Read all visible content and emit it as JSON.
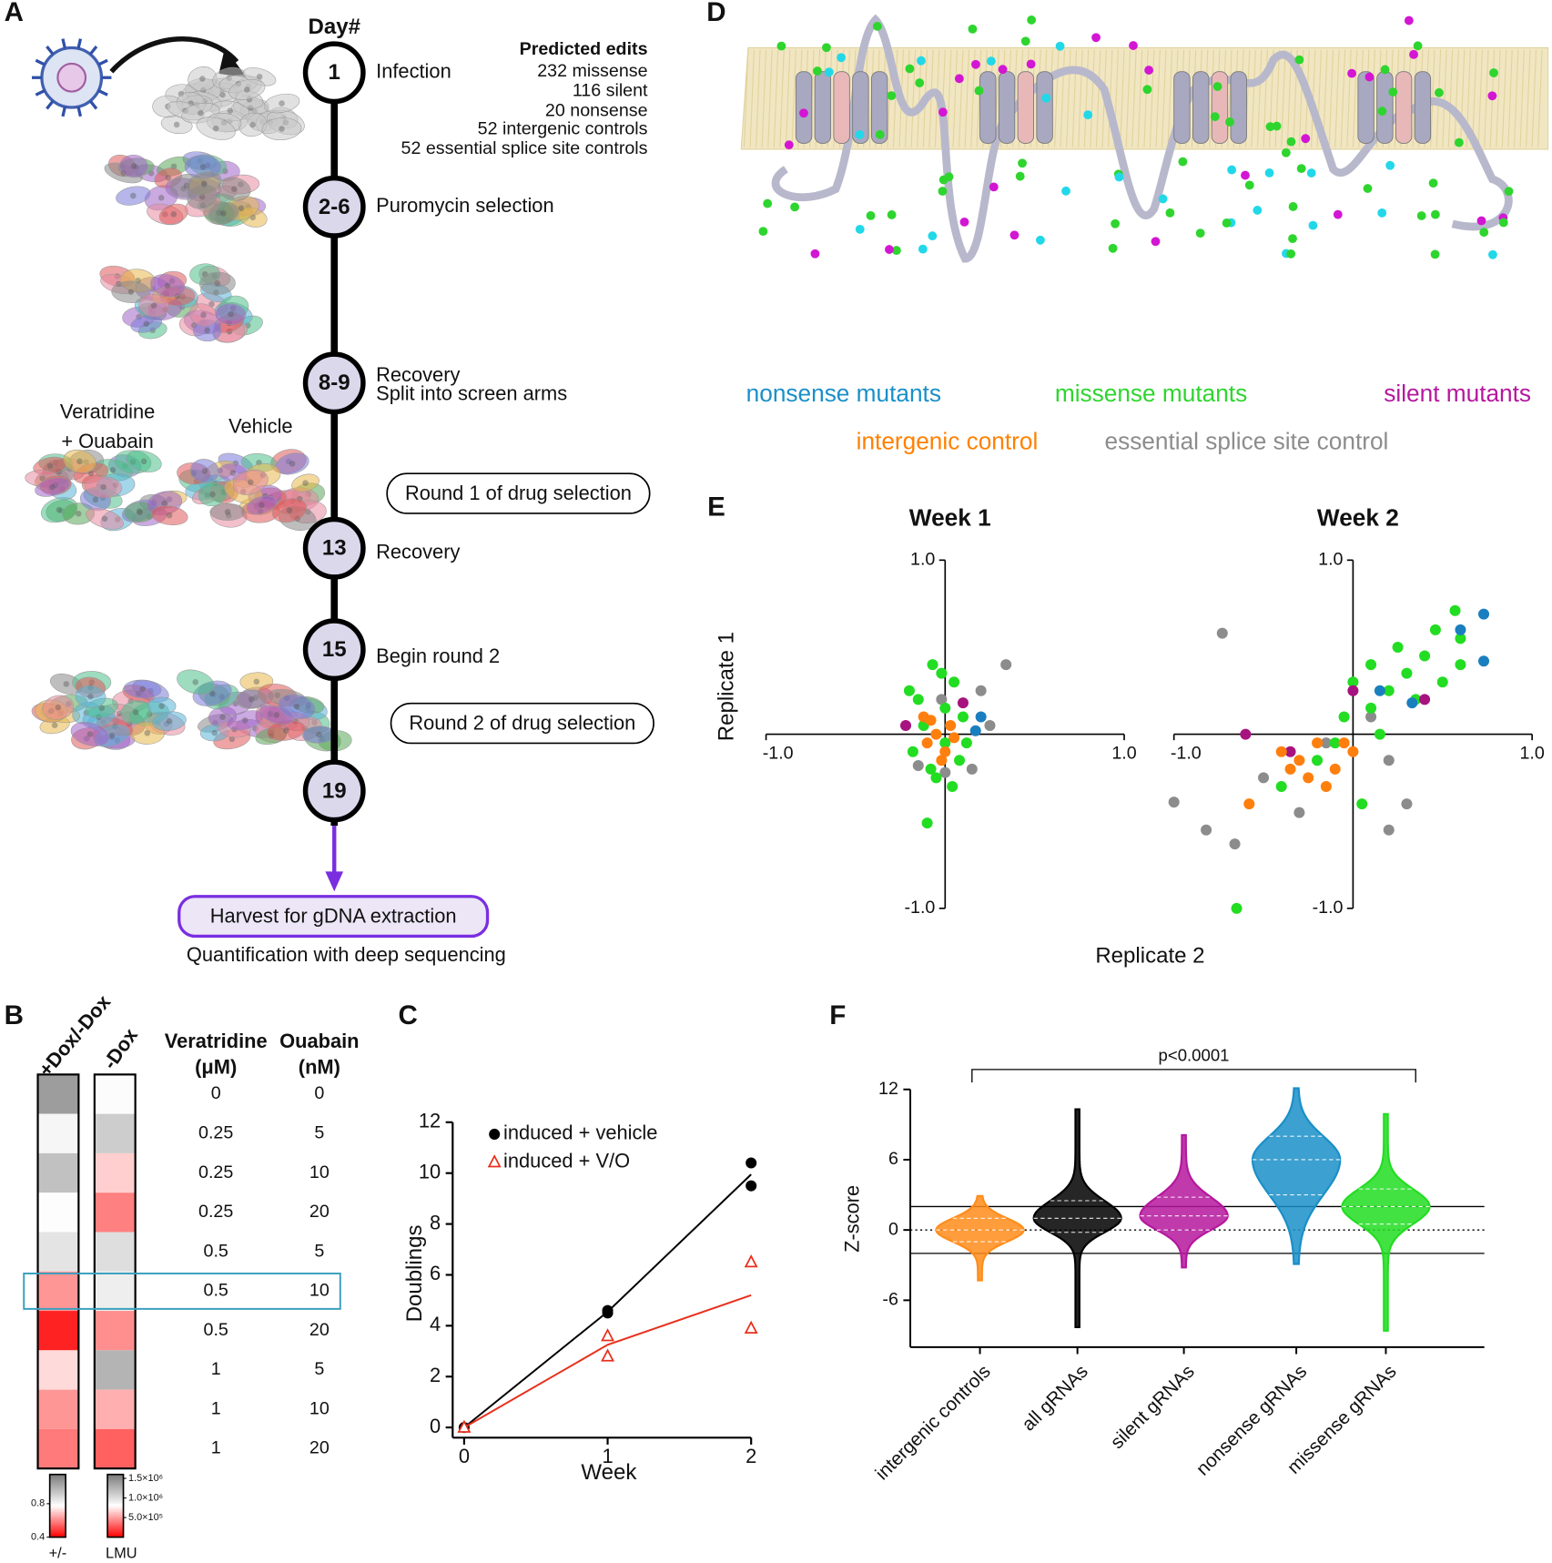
{
  "panel_labels": [
    "A",
    "B",
    "C",
    "D",
    "E",
    "F"
  ],
  "timeline": {
    "header": "Day#",
    "steps": [
      {
        "day": "1",
        "label": [
          "Infection"
        ]
      },
      {
        "day": "2-6",
        "label": [
          "Puromycin selection"
        ]
      },
      {
        "day": "8-9",
        "label": [
          "Recovery",
          "Split into screen arms"
        ]
      },
      {
        "day": "13",
        "label": [
          "Recovery"
        ]
      },
      {
        "day": "15",
        "label": [
          "Begin round 2"
        ]
      },
      {
        "day": "19"
      }
    ],
    "boxes": [
      "Round 1 of drug selection",
      "Round 2 of drug selection"
    ],
    "edits_title": "Predicted edits",
    "edits": [
      "232 missense",
      "116 silent",
      "20 nonsense",
      "52 intergenic controls",
      "52 essential splice site controls"
    ],
    "arm_labels": [
      "Veratridine",
      "+ Ouabain",
      "Vehicle"
    ],
    "harvest": "Harvest for gDNA extraction",
    "quantification": "Quantification with deep sequencing"
  },
  "structure_legend": [
    {
      "label": "nonsense mutants",
      "color": "#1a8fc8"
    },
    {
      "label": "missense mutants",
      "color": "#2ed52e"
    },
    {
      "label": "silent mutants",
      "color": "#b5179e"
    },
    {
      "label": "intergenic control",
      "color": "#ff8000"
    },
    {
      "label": "essential splice site control",
      "color": "#8c8c8c"
    }
  ],
  "chart_data": [
    {
      "type": "heatmap",
      "table": {
        "headers": [
          [
            "Veratridine",
            "(μM)"
          ],
          [
            "Ouabain",
            "(nM)"
          ]
        ],
        "rows": [
          [
            0,
            0
          ],
          [
            0.25,
            5
          ],
          [
            0.25,
            10
          ],
          [
            0.25,
            20
          ],
          [
            0.5,
            5
          ],
          [
            0.5,
            10
          ],
          [
            0.5,
            20
          ],
          [
            1,
            5
          ],
          [
            1,
            10
          ],
          [
            1,
            20
          ]
        ]
      },
      "highlight_row": 5,
      "series": [
        {
          "name": "+Dox/-Dox",
          "scale": 0,
          "values": [
            1.05,
            0.8,
            0.95,
            0.78,
            0.85,
            0.62,
            0.45,
            0.72,
            0.62,
            0.58
          ]
        },
        {
          "name": "-Dox",
          "scale": 1,
          "values": [
            820000,
            1100000,
            650000,
            400000,
            1000000,
            900000,
            450000,
            1250000,
            550000,
            300000
          ]
        }
      ],
      "scales": [
        {
          "label": "+/-",
          "clim": [
            0.4,
            1.15
          ],
          "colors": [
            "#ff0000",
            "#ffffff",
            "#7a7a7a"
          ],
          "ticks": [
            0.4,
            0.8
          ]
        },
        {
          "label": "LMU",
          "clim": [
            0,
            1600000
          ],
          "colors": [
            "#ff0000",
            "#ffffff",
            "#7a7a7a"
          ],
          "ticks": [
            {
              "value": 500000,
              "label": "5.0×10⁵"
            },
            {
              "value": 1000000,
              "label": "1.0×10⁶"
            },
            {
              "value": 1500000,
              "label": "1.5×10⁶"
            }
          ]
        }
      ]
    },
    {
      "type": "line",
      "xlabel": "Week",
      "ylabel": "Doublings",
      "xlim": [
        -0.08,
        2
      ],
      "ylim": [
        -0.4,
        12
      ],
      "xticks": [
        0,
        1,
        2
      ],
      "yticks": [
        0,
        2,
        4,
        6,
        8,
        10,
        12
      ],
      "series": [
        {
          "name": "induced + vehicle",
          "color": "#000000",
          "marker": "circle",
          "x": [
            0,
            1,
            1,
            2,
            2
          ],
          "values": [
            0,
            4.5,
            4.6,
            10.4,
            9.5
          ],
          "fit_x": [
            0,
            1,
            2
          ],
          "fit_values": [
            0,
            4.55,
            9.95
          ]
        },
        {
          "name": "induced + V/O",
          "color": "#e8301c",
          "marker": "triangle",
          "x": [
            0,
            1,
            1,
            2,
            2
          ],
          "values": [
            0,
            3.6,
            2.8,
            6.5,
            3.9
          ],
          "fit_x": [
            0,
            1,
            2
          ],
          "fit_values": [
            0,
            3.25,
            5.2
          ]
        }
      ]
    },
    {
      "type": "scatter",
      "title": "Week 1",
      "ylabel": "Replicate 1",
      "xlim": [
        -1,
        1
      ],
      "ylim": [
        -1,
        1
      ],
      "xticks": [
        {
          "value": -1,
          "label": "-1.0"
        },
        {
          "value": 1,
          "label": "1.0"
        }
      ],
      "yticks": [
        {
          "value": -1,
          "label": "-1.0"
        },
        {
          "value": 1,
          "label": "1.0"
        }
      ],
      "series": [
        {
          "color": "#8c8c8c",
          "x": [
            0.34,
            0.2,
            0.15,
            -0.15,
            0.0,
            0.25,
            -0.02
          ],
          "values": [
            0.4,
            0.25,
            -0.2,
            -0.18,
            -0.22,
            0.05,
            0.2
          ]
        },
        {
          "color": "#22dd22",
          "x": [
            -0.07,
            -0.1,
            -0.15,
            0.05,
            -0.12,
            0.08,
            -0.05,
            0.0,
            -0.18,
            0.1,
            -0.02,
            0.04,
            -0.2,
            0.12,
            -0.08,
            0.0
          ],
          "values": [
            0.4,
            -0.51,
            0.2,
            0.3,
            0.05,
            -0.15,
            -0.25,
            0.15,
            -0.1,
            0.1,
            0.35,
            -0.3,
            0.25,
            -0.05,
            -0.2,
            -0.05
          ]
        },
        {
          "color": "#a6137f",
          "x": [
            -0.22,
            0.1
          ],
          "values": [
            0.05,
            0.18
          ]
        },
        {
          "color": "#1a7fbf",
          "x": [
            0.2,
            0.17
          ],
          "values": [
            0.1,
            0.02
          ]
        },
        {
          "color": "#ff7f0e",
          "x": [
            -0.05,
            -0.1,
            0.0,
            -0.08,
            0.05,
            -0.02,
            -0.12,
            0.03
          ],
          "values": [
            0.0,
            -0.05,
            -0.1,
            0.08,
            -0.02,
            -0.15,
            0.1,
            0.05
          ]
        }
      ]
    },
    {
      "type": "scatter",
      "title": "Week 2",
      "xlabel": "Replicate 2",
      "xlim": [
        -1,
        1
      ],
      "ylim": [
        -1,
        1
      ],
      "xticks": [
        {
          "value": -1,
          "label": "-1.0"
        },
        {
          "value": 1,
          "label": "1.0"
        }
      ],
      "yticks": [
        {
          "value": -1,
          "label": "-1.0"
        },
        {
          "value": 1,
          "label": "1.0"
        }
      ],
      "series": [
        {
          "color": "#8c8c8c",
          "x": [
            -0.73,
            -1.0,
            0.2,
            -0.66,
            -0.82,
            0.3,
            -0.5,
            -0.3,
            -0.15,
            0.2,
            0.1
          ],
          "values": [
            0.58,
            -0.39,
            -0.55,
            -0.63,
            -0.55,
            -0.4,
            -0.25,
            -0.45,
            -0.05,
            -0.15,
            0.1
          ]
        },
        {
          "color": "#22dd22",
          "x": [
            0.57,
            0.46,
            0.4,
            0.3,
            0.5,
            0.2,
            0.1,
            0.0,
            -0.05,
            0.15,
            0.35,
            0.6,
            0.25,
            -0.65,
            -0.2,
            0.05,
            -0.4,
            0.1,
            -0.1,
            0.6
          ],
          "values": [
            0.71,
            0.6,
            0.45,
            0.35,
            0.3,
            0.25,
            0.15,
            0.3,
            0.1,
            0.0,
            0.2,
            0.4,
            0.5,
            -1.0,
            -0.15,
            -0.4,
            -0.3,
            0.4,
            -0.05,
            0.55
          ]
        },
        {
          "color": "#a6137f",
          "x": [
            -0.6,
            0.4,
            0.0,
            -0.35
          ],
          "values": [
            0.0,
            0.2,
            0.25,
            -0.1
          ]
        },
        {
          "color": "#1a7fbf",
          "x": [
            0.73,
            0.73,
            0.6,
            0.33,
            0.15
          ],
          "values": [
            0.69,
            0.42,
            0.6,
            0.18,
            0.25
          ]
        },
        {
          "color": "#ff7f0e",
          "x": [
            -0.58,
            -0.3,
            -0.2,
            -0.1,
            -0.4,
            -0.25,
            0.0,
            -0.15,
            -0.05,
            -0.35
          ],
          "values": [
            -0.4,
            -0.15,
            -0.05,
            -0.2,
            -0.1,
            -0.25,
            -0.1,
            -0.3,
            -0.05,
            -0.2
          ]
        }
      ]
    },
    {
      "type": "violin",
      "ylabel": "Z-score",
      "ylim": [
        -10,
        12
      ],
      "yticks": [
        -6,
        0,
        6,
        12
      ],
      "hlines": [
        -2,
        0,
        2
      ],
      "hline_styles": [
        "solid",
        "dotted",
        "solid"
      ],
      "annotation": "p<0.0001",
      "bracket": [
        0,
        4
      ],
      "categories": [
        "intergenic controls",
        "all gRNAs",
        "silent gRNAs",
        "nonsense gRNAs",
        "missense gRNAs"
      ],
      "series": [
        {
          "color": "#ff8c1a",
          "min": -4.3,
          "q1": -1,
          "median": 0,
          "q3": 1,
          "max": 2.9
        },
        {
          "color": "#000000",
          "min": -8.3,
          "q1": -0.2,
          "median": 1,
          "q3": 2.5,
          "max": 10.3
        },
        {
          "color": "#b5179e",
          "min": -3.2,
          "q1": 0,
          "median": 1.2,
          "q3": 2.8,
          "max": 8.1
        },
        {
          "color": "#1a8fc8",
          "min": -2.9,
          "q1": 3,
          "median": 6,
          "q3": 8,
          "max": 12.1
        },
        {
          "color": "#22dd22",
          "min": -8.6,
          "q1": 0.5,
          "median": 2,
          "q3": 3.5,
          "max": 9.9
        }
      ]
    }
  ]
}
